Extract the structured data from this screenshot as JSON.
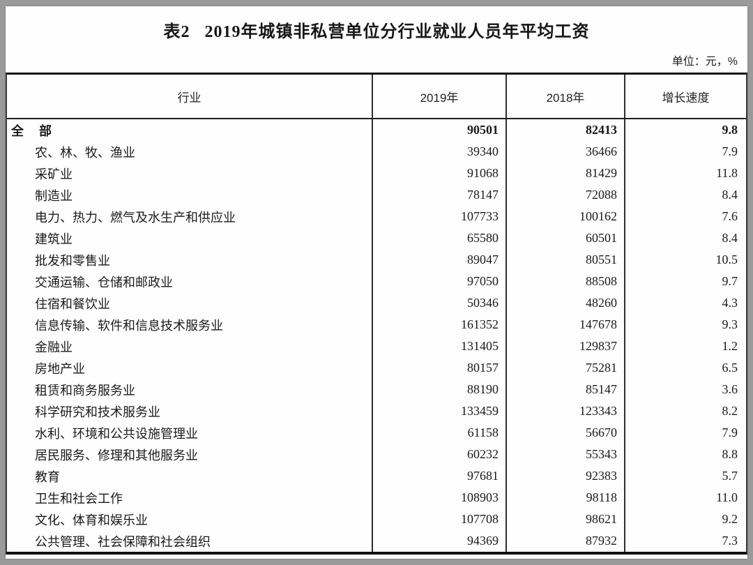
{
  "table": {
    "title": "表2   2019年城镇非私营单位分行业就业人员年平均工资",
    "unit_note": "单位：元，%",
    "columns": [
      "行业",
      "2019年",
      "2018年",
      "增长速度"
    ],
    "rows": [
      {
        "industry": "全　部",
        "y2019": "90501",
        "y2018": "82413",
        "growth": "9.8",
        "bold": true,
        "indent": false
      },
      {
        "industry": "农、林、牧、渔业",
        "y2019": "39340",
        "y2018": "36466",
        "growth": "7.9",
        "bold": false,
        "indent": true
      },
      {
        "industry": "采矿业",
        "y2019": "91068",
        "y2018": "81429",
        "growth": "11.8",
        "bold": false,
        "indent": true
      },
      {
        "industry": "制造业",
        "y2019": "78147",
        "y2018": "72088",
        "growth": "8.4",
        "bold": false,
        "indent": true
      },
      {
        "industry": "电力、热力、燃气及水生产和供应业",
        "y2019": "107733",
        "y2018": "100162",
        "growth": "7.6",
        "bold": false,
        "indent": true
      },
      {
        "industry": "建筑业",
        "y2019": "65580",
        "y2018": "60501",
        "growth": "8.4",
        "bold": false,
        "indent": true
      },
      {
        "industry": "批发和零售业",
        "y2019": "89047",
        "y2018": "80551",
        "growth": "10.5",
        "bold": false,
        "indent": true
      },
      {
        "industry": "交通运输、仓储和邮政业",
        "y2019": "97050",
        "y2018": "88508",
        "growth": "9.7",
        "bold": false,
        "indent": true
      },
      {
        "industry": "住宿和餐饮业",
        "y2019": "50346",
        "y2018": "48260",
        "growth": "4.3",
        "bold": false,
        "indent": true
      },
      {
        "industry": "信息传输、软件和信息技术服务业",
        "y2019": "161352",
        "y2018": "147678",
        "growth": "9.3",
        "bold": false,
        "indent": true
      },
      {
        "industry": "金融业",
        "y2019": "131405",
        "y2018": "129837",
        "growth": "1.2",
        "bold": false,
        "indent": true
      },
      {
        "industry": "房地产业",
        "y2019": "80157",
        "y2018": "75281",
        "growth": "6.5",
        "bold": false,
        "indent": true
      },
      {
        "industry": "租赁和商务服务业",
        "y2019": "88190",
        "y2018": "85147",
        "growth": "3.6",
        "bold": false,
        "indent": true
      },
      {
        "industry": "科学研究和技术服务业",
        "y2019": "133459",
        "y2018": "123343",
        "growth": "8.2",
        "bold": false,
        "indent": true
      },
      {
        "industry": "水利、环境和公共设施管理业",
        "y2019": "61158",
        "y2018": "56670",
        "growth": "7.9",
        "bold": false,
        "indent": true
      },
      {
        "industry": "居民服务、修理和其他服务业",
        "y2019": "60232",
        "y2018": "55343",
        "growth": "8.8",
        "bold": false,
        "indent": true
      },
      {
        "industry": "教育",
        "y2019": "97681",
        "y2018": "92383",
        "growth": "5.7",
        "bold": false,
        "indent": true
      },
      {
        "industry": "卫生和社会工作",
        "y2019": "108903",
        "y2018": "98118",
        "growth": "11.0",
        "bold": false,
        "indent": true
      },
      {
        "industry": "文化、体育和娱乐业",
        "y2019": "107708",
        "y2018": "98621",
        "growth": "9.2",
        "bold": false,
        "indent": true
      },
      {
        "industry": "公共管理、社会保障和社会组织",
        "y2019": "94369",
        "y2018": "87932",
        "growth": "7.3",
        "bold": false,
        "indent": true
      }
    ]
  },
  "chart_data": {
    "type": "table",
    "title": "表2 2019年城镇非私营单位分行业就业人员年平均工资",
    "unit": "元，%",
    "columns": [
      "行业",
      "2019年",
      "2018年",
      "增长速度"
    ],
    "rows": [
      [
        "全部",
        90501,
        82413,
        9.8
      ],
      [
        "农、林、牧、渔业",
        39340,
        36466,
        7.9
      ],
      [
        "采矿业",
        91068,
        81429,
        11.8
      ],
      [
        "制造业",
        78147,
        72088,
        8.4
      ],
      [
        "电力、热力、燃气及水生产和供应业",
        107733,
        100162,
        7.6
      ],
      [
        "建筑业",
        65580,
        60501,
        8.4
      ],
      [
        "批发和零售业",
        89047,
        80551,
        10.5
      ],
      [
        "交通运输、仓储和邮政业",
        97050,
        88508,
        9.7
      ],
      [
        "住宿和餐饮业",
        50346,
        48260,
        4.3
      ],
      [
        "信息传输、软件和信息技术服务业",
        161352,
        147678,
        9.3
      ],
      [
        "金融业",
        131405,
        129837,
        1.2
      ],
      [
        "房地产业",
        80157,
        75281,
        6.5
      ],
      [
        "租赁和商务服务业",
        88190,
        85147,
        3.6
      ],
      [
        "科学研究和技术服务业",
        133459,
        123343,
        8.2
      ],
      [
        "水利、环境和公共设施管理业",
        61158,
        56670,
        7.9
      ],
      [
        "居民服务、修理和其他服务业",
        60232,
        55343,
        8.8
      ],
      [
        "教育",
        97681,
        92383,
        5.7
      ],
      [
        "卫生和社会工作",
        108903,
        98118,
        11.0
      ],
      [
        "文化、体育和娱乐业",
        107708,
        98621,
        9.2
      ],
      [
        "公共管理、社会保障和社会组织",
        94369,
        87932,
        7.3
      ]
    ]
  }
}
